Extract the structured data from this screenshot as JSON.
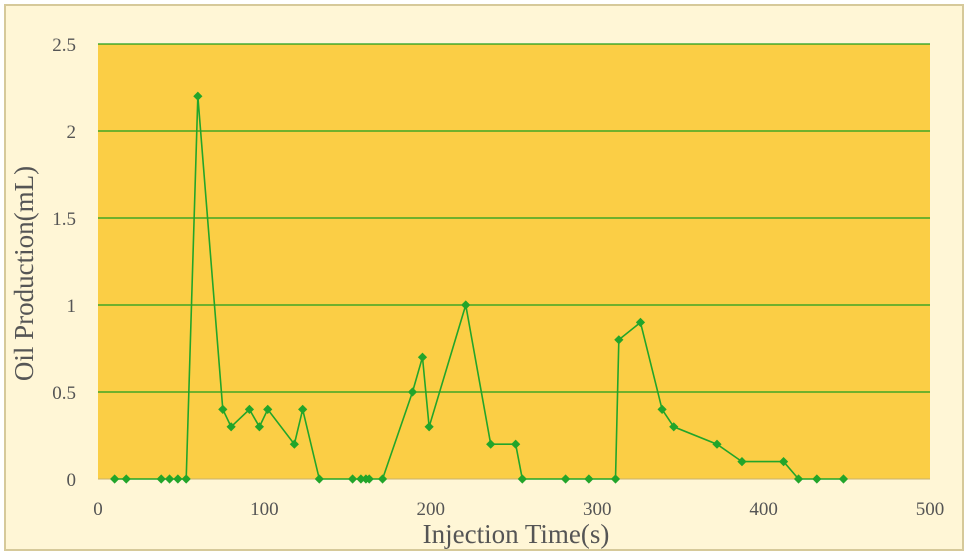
{
  "chart_data": {
    "type": "scatter",
    "title": "",
    "xlabel": "Injection Time(s)",
    "ylabel": "Oil Production(mL)",
    "xlim": [
      0,
      500
    ],
    "ylim": [
      0,
      2.5
    ],
    "x_ticks": [
      "0",
      "100",
      "200",
      "300",
      "400",
      "500"
    ],
    "y_ticks": [
      "0",
      "0.5",
      "1",
      "1.5",
      "2",
      "2.5"
    ],
    "grid": "horizontal",
    "legend": "none",
    "colors": {
      "plot_background": "#fbce45",
      "gridline": "#1e9e1e",
      "series": "#22a52a"
    },
    "series": [
      {
        "points": [
          [
            10,
            0
          ],
          [
            17,
            0
          ],
          [
            38,
            0
          ],
          [
            43,
            0
          ],
          [
            48,
            0
          ],
          [
            53,
            0
          ],
          [
            60,
            2.2
          ],
          [
            75,
            0.4
          ],
          [
            80,
            0.3
          ],
          [
            91,
            0.4
          ],
          [
            97,
            0.3
          ],
          [
            102,
            0.4
          ],
          [
            118,
            0.2
          ],
          [
            123,
            0.4
          ],
          [
            133,
            0
          ],
          [
            153,
            0
          ],
          [
            158,
            0
          ],
          [
            161,
            0
          ],
          [
            163,
            0
          ],
          [
            171,
            0
          ],
          [
            189,
            0.5
          ],
          [
            195,
            0.7
          ],
          [
            199,
            0.3
          ],
          [
            221,
            1
          ],
          [
            236,
            0.2
          ],
          [
            251,
            0.2
          ],
          [
            255,
            0
          ],
          [
            281,
            0
          ],
          [
            295,
            0
          ],
          [
            311,
            0
          ],
          [
            313,
            0.8
          ],
          [
            326,
            0.9
          ],
          [
            339,
            0.4
          ],
          [
            346,
            0.3
          ],
          [
            372,
            0.2
          ],
          [
            387,
            0.1
          ],
          [
            412,
            0.1
          ],
          [
            421,
            0
          ],
          [
            432,
            0
          ],
          [
            448,
            0
          ]
        ]
      }
    ]
  }
}
